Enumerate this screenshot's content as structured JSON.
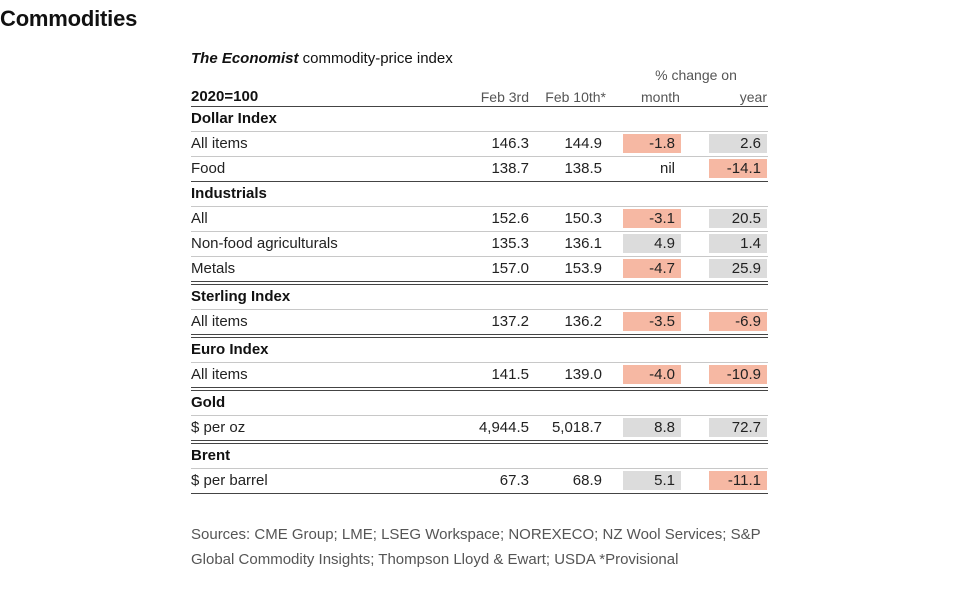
{
  "page_title": "Commodities",
  "table": {
    "title_italic": "The Economist",
    "title_rest": " commodity-price index",
    "base_label": "2020=100",
    "columns": {
      "feb3": "Feb 3rd",
      "feb10": "Feb 10th*",
      "pct_change": "% change on",
      "month": "month",
      "year": "year"
    },
    "sections": [
      {
        "heading": "Dollar Index",
        "rows": [
          {
            "label": "All items",
            "feb3": "146.3",
            "feb10": "144.9",
            "month": "-1.8",
            "month_tone": "neg",
            "year": "2.6",
            "year_tone": "pos"
          },
          {
            "label": "Food",
            "feb3": "138.7",
            "feb10": "138.5",
            "month": "nil",
            "month_tone": "nil",
            "year": "-14.1",
            "year_tone": "neg"
          }
        ]
      },
      {
        "heading": "Industrials",
        "rows": [
          {
            "label": "All",
            "feb3": "152.6",
            "feb10": "150.3",
            "month": "-3.1",
            "month_tone": "neg",
            "year": "20.5",
            "year_tone": "pos"
          },
          {
            "label": "Non-food agriculturals",
            "feb3": "135.3",
            "feb10": "136.1",
            "month": "4.9",
            "month_tone": "pos",
            "year": "1.4",
            "year_tone": "pos"
          },
          {
            "label": "Metals",
            "feb3": "157.0",
            "feb10": "153.9",
            "month": "-4.7",
            "month_tone": "neg",
            "year": "25.9",
            "year_tone": "pos"
          }
        ]
      },
      {
        "heading": "Sterling Index",
        "rows": [
          {
            "label": "All items",
            "feb3": "137.2",
            "feb10": "136.2",
            "month": "-3.5",
            "month_tone": "neg",
            "year": "-6.9",
            "year_tone": "neg"
          }
        ]
      },
      {
        "heading": "Euro Index",
        "rows": [
          {
            "label": "All items",
            "feb3": "141.5",
            "feb10": "139.0",
            "month": "-4.0",
            "month_tone": "neg",
            "year": "-10.9",
            "year_tone": "neg"
          }
        ]
      },
      {
        "heading": "Gold",
        "rows": [
          {
            "label": "$ per oz",
            "feb3": "4,944.5",
            "feb10": "5,018.7",
            "month": "8.8",
            "month_tone": "pos",
            "year": "72.7",
            "year_tone": "pos"
          }
        ]
      },
      {
        "heading": "Brent",
        "rows": [
          {
            "label": "$ per barrel",
            "feb3": "67.3",
            "feb10": "68.9",
            "month": "5.1",
            "month_tone": "pos",
            "year": "-11.1",
            "year_tone": "neg"
          }
        ]
      }
    ]
  },
  "sources_line1": "Sources: CME Group; LME; LSEG Workspace; NOREXECO; NZ Wool Services; S&P",
  "sources_line2": "Global Commodity Insights; Thompson Lloyd & Ewart; USDA  *Provisional",
  "colors": {
    "negative_fill": "#f6b8a3",
    "positive_fill": "#dcdcdc"
  }
}
